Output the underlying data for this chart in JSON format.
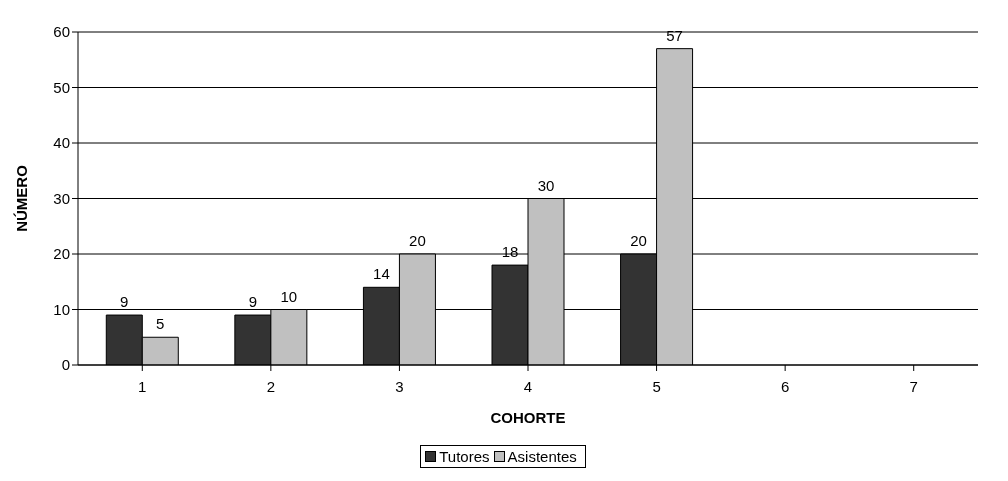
{
  "chart_data": {
    "type": "bar",
    "xlabel": "COHORTE",
    "ylabel": "NÚMERO",
    "categories": [
      "1",
      "2",
      "3",
      "4",
      "5",
      "6",
      "7"
    ],
    "series": [
      {
        "name": "Tutores",
        "color": "#333333",
        "values": [
          9,
          9,
          14,
          18,
          20,
          null,
          null
        ]
      },
      {
        "name": "Asistentes",
        "color": "#c0c0c0",
        "values": [
          5,
          10,
          20,
          30,
          57,
          null,
          null
        ]
      }
    ],
    "ylim": [
      0,
      60
    ],
    "yticks": [
      0,
      10,
      20,
      30,
      40,
      50,
      60
    ],
    "grid": "y",
    "legend": "bottom",
    "data_labels": true
  }
}
